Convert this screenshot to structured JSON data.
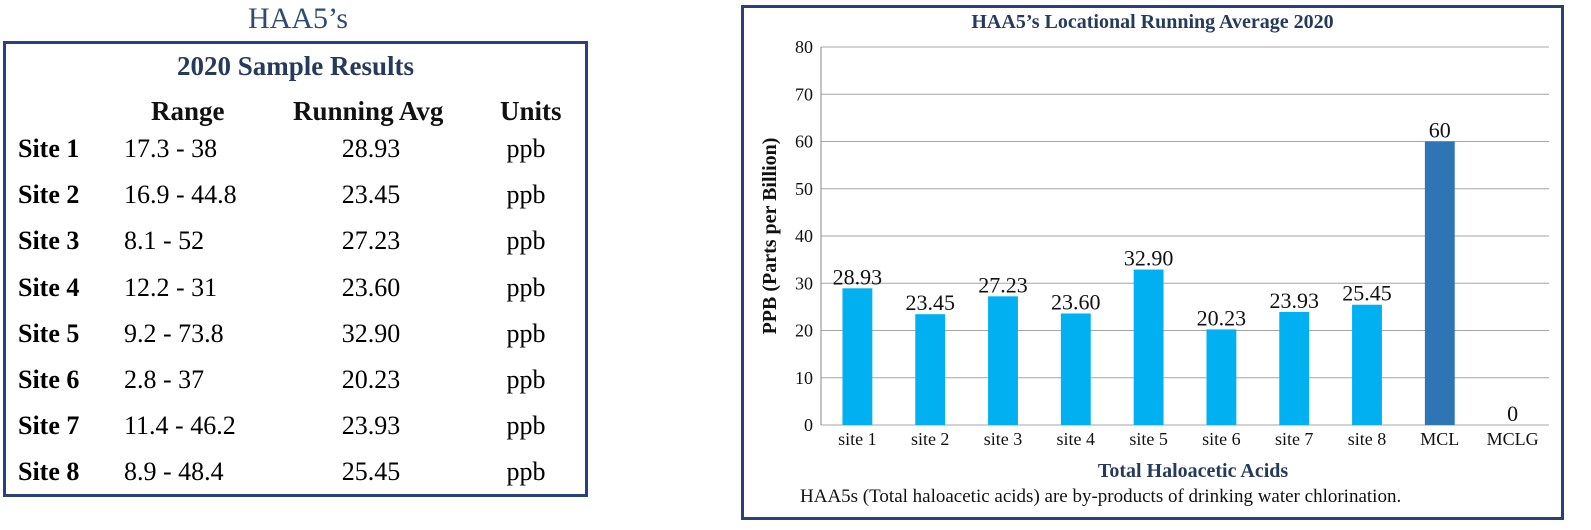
{
  "table": {
    "title": "HAA5’s",
    "subtitle": "2020 Sample Results",
    "headers": {
      "range": "Range",
      "avg": "Running Avg",
      "units": "Units"
    },
    "rows": [
      {
        "site": "Site 1",
        "range": "17.3 - 38",
        "avg": "28.93",
        "unit": "ppb"
      },
      {
        "site": "Site 2",
        "range": "16.9 - 44.8",
        "avg": "23.45",
        "unit": "ppb"
      },
      {
        "site": "Site 3",
        "range": "8.1 - 52",
        "avg": "27.23",
        "unit": "ppb"
      },
      {
        "site": "Site 4",
        "range": "12.2 - 31",
        "avg": "23.60",
        "unit": "ppb"
      },
      {
        "site": "Site 5",
        "range": "9.2 - 73.8",
        "avg": "32.90",
        "unit": "ppb"
      },
      {
        "site": "Site 6",
        "range": "2.8 - 37",
        "avg": "20.23",
        "unit": "ppb"
      },
      {
        "site": "Site 7",
        "range": "11.4 - 46.2",
        "avg": "23.93",
        "unit": "ppb"
      },
      {
        "site": "Site 8",
        "range": "8.9 - 48.4",
        "avg": "25.45",
        "unit": "ppb"
      }
    ],
    "colors": {
      "border": "#2b3f7a",
      "title": "#2e4a78"
    }
  },
  "chart_data": {
    "type": "bar",
    "title": "HAA5’s  Locational Running Average 2020",
    "xlabel": "Total Haloacetic Acids",
    "ylabel": "PPB (Parts per Billion)",
    "note": "HAA5s (Total haloacetic acids) are by-products of drinking water chlorination.",
    "categories": [
      "site 1",
      "site 2",
      "site 3",
      "site 4",
      "site 5",
      "site 6",
      "site 7",
      "site 8",
      "MCL",
      "MCLG"
    ],
    "values": [
      28.93,
      23.45,
      27.23,
      23.6,
      32.9,
      20.23,
      23.93,
      25.45,
      60,
      0
    ],
    "value_labels": [
      "28.93",
      "23.45",
      "27.23",
      "23.60",
      "32.90",
      "20.23",
      "23.93",
      "25.45",
      "60",
      "0"
    ],
    "ylim": [
      0,
      80
    ],
    "yticks": [
      0,
      10,
      20,
      30,
      40,
      50,
      60,
      70,
      80
    ],
    "grid": true,
    "colors": {
      "site": "#00b0f0",
      "MCL": "#2e75b6",
      "grid": "#a6a6a6",
      "title": "#263a5c"
    }
  }
}
